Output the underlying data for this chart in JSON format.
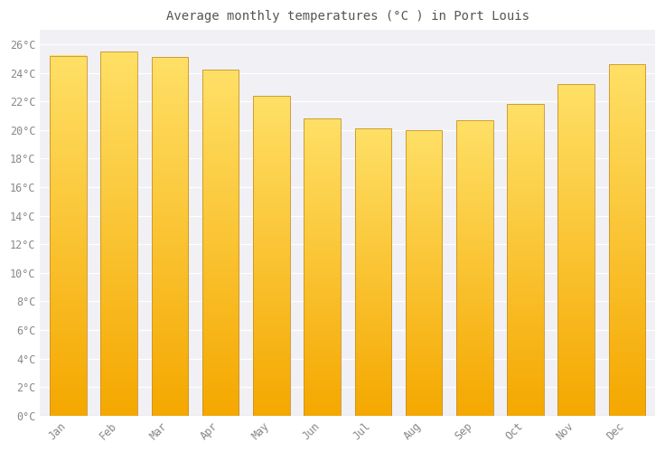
{
  "title": "Average monthly temperatures (°C ) in Port Louis",
  "months": [
    "Jan",
    "Feb",
    "Mar",
    "Apr",
    "May",
    "Jun",
    "Jul",
    "Aug",
    "Sep",
    "Oct",
    "Nov",
    "Dec"
  ],
  "values": [
    25.2,
    25.5,
    25.1,
    24.2,
    22.4,
    20.8,
    20.1,
    20.0,
    20.7,
    21.8,
    23.2,
    24.6
  ],
  "bar_color_bottom": "#F5A800",
  "bar_color_top": "#FFE066",
  "bar_edge_color": "#C8922A",
  "yticks": [
    0,
    2,
    4,
    6,
    8,
    10,
    12,
    14,
    16,
    18,
    20,
    22,
    24,
    26
  ],
  "ytick_labels": [
    "0°C",
    "2°C",
    "4°C",
    "6°C",
    "8°C",
    "10°C",
    "12°C",
    "14°C",
    "16°C",
    "18°C",
    "20°C",
    "22°C",
    "24°C",
    "26°C"
  ],
  "ylim_max": 27,
  "background_color": "#ffffff",
  "plot_bg_color": "#f0f0f5",
  "grid_color": "#ffffff",
  "title_fontsize": 10,
  "tick_fontsize": 8.5,
  "tick_color": "#888888",
  "title_color": "#555555",
  "bar_width": 0.72
}
